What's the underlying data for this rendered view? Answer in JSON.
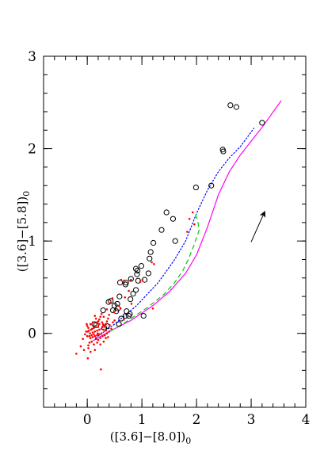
{
  "chart_data": {
    "type": "scatter",
    "title": "",
    "xlabel": {
      "main": "([3.6]−[8.0])",
      "sub": "0"
    },
    "ylabel": {
      "main": "([3.6]−[5.8])",
      "sub": "0"
    },
    "xlim": [
      -0.8,
      4.0
    ],
    "ylim": [
      -0.8,
      3.0
    ],
    "x_ticks": [
      {
        "value": 0,
        "label": "0"
      },
      {
        "value": 1,
        "label": "1"
      },
      {
        "value": 2,
        "label": "2"
      },
      {
        "value": 3,
        "label": "3"
      },
      {
        "value": 4,
        "label": "4"
      }
    ],
    "y_ticks": [
      {
        "value": 0,
        "label": "0"
      },
      {
        "value": 1,
        "label": "1"
      },
      {
        "value": 2,
        "label": "2"
      },
      {
        "value": 3,
        "label": "3"
      }
    ],
    "x_minor_step": 0.2,
    "y_minor_step": 0.2,
    "grid": false,
    "series": [
      {
        "kind": "points",
        "marker": "open-circle",
        "color": "#000000",
        "points": [
          [
            3.2,
            2.28
          ],
          [
            2.62,
            2.47
          ],
          [
            2.73,
            2.45
          ],
          [
            2.48,
            1.99
          ],
          [
            2.49,
            1.97
          ],
          [
            1.99,
            1.58
          ],
          [
            2.27,
            1.6
          ],
          [
            1.45,
            1.31
          ],
          [
            1.57,
            1.24
          ],
          [
            1.61,
            1.0
          ],
          [
            1.36,
            1.12
          ],
          [
            1.21,
            0.98
          ],
          [
            1.16,
            0.88
          ],
          [
            1.14,
            0.81
          ],
          [
            0.99,
            0.73
          ],
          [
            0.89,
            0.7
          ],
          [
            0.92,
            0.68
          ],
          [
            0.91,
            0.64
          ],
          [
            1.12,
            0.65
          ],
          [
            1.05,
            0.58
          ],
          [
            0.93,
            0.57
          ],
          [
            0.8,
            0.59
          ],
          [
            0.7,
            0.53
          ],
          [
            0.71,
            0.55
          ],
          [
            0.89,
            0.47
          ],
          [
            0.6,
            0.55
          ],
          [
            0.79,
            0.37
          ],
          [
            0.84,
            0.43
          ],
          [
            0.59,
            0.4
          ],
          [
            0.55,
            0.32
          ],
          [
            0.56,
            0.27
          ],
          [
            0.43,
            0.35
          ],
          [
            0.39,
            0.34
          ],
          [
            0.5,
            0.3
          ],
          [
            0.47,
            0.25
          ],
          [
            0.53,
            0.24
          ],
          [
            0.29,
            0.25
          ],
          [
            0.72,
            0.24
          ],
          [
            0.76,
            0.19
          ],
          [
            0.7,
            0.19
          ],
          [
            0.62,
            0.16
          ],
          [
            0.78,
            0.21
          ],
          [
            1.03,
            0.19
          ],
          [
            0.58,
            0.1
          ],
          [
            0.36,
            0.08
          ],
          [
            0.31,
            0.06
          ],
          [
            0.16,
            0.09
          ],
          [
            0.13,
            0.1
          ]
        ]
      },
      {
        "kind": "points",
        "marker": "filled-dot",
        "color": "#ff0000",
        "points": [
          [
            1.93,
            1.31
          ],
          [
            1.96,
            1.18
          ],
          [
            1.87,
            1.24
          ],
          [
            1.83,
            1.1
          ],
          [
            1.18,
            0.77
          ],
          [
            1.22,
            0.75
          ],
          [
            1.01,
            0.58
          ],
          [
            0.97,
            0.56
          ],
          [
            0.8,
            0.58
          ],
          [
            0.67,
            0.57
          ],
          [
            0.62,
            0.58
          ],
          [
            0.76,
            0.46
          ],
          [
            0.69,
            0.39
          ],
          [
            0.81,
            0.32
          ],
          [
            0.46,
            0.38
          ],
          [
            0.43,
            0.33
          ],
          [
            0.56,
            0.3
          ],
          [
            0.61,
            0.27
          ],
          [
            0.49,
            0.23
          ],
          [
            0.36,
            0.26
          ],
          [
            1.2,
            0.27
          ],
          [
            0.67,
            0.15
          ],
          [
            0.5,
            0.14
          ],
          [
            0.47,
            0.12
          ],
          [
            0.4,
            0.2
          ],
          [
            0.38,
            0.16
          ],
          [
            0.34,
            0.1
          ],
          [
            0.41,
            0.09
          ],
          [
            0.26,
            0.21
          ],
          [
            0.3,
            0.18
          ],
          [
            0.22,
            0.15
          ],
          [
            0.2,
            0.13
          ],
          [
            0.18,
            0.12
          ],
          [
            0.27,
            0.12
          ],
          [
            0.29,
            0.1
          ],
          [
            0.32,
            0.08
          ],
          [
            0.22,
            0.1
          ],
          [
            0.2,
            0.07
          ],
          [
            0.15,
            0.08
          ],
          [
            0.12,
            0.06
          ],
          [
            0.09,
            0.05
          ],
          [
            0.07,
            0.04
          ],
          [
            0.03,
            0.03
          ],
          [
            0.01,
            0.02
          ],
          [
            0.05,
            0.0
          ],
          [
            0.1,
            0.01
          ],
          [
            0.14,
            0.02
          ],
          [
            0.18,
            0.03
          ],
          [
            0.22,
            0.04
          ],
          [
            0.26,
            0.05
          ],
          [
            0.3,
            0.04
          ],
          [
            0.34,
            0.03
          ],
          [
            0.12,
            -0.01
          ],
          [
            0.08,
            -0.02
          ],
          [
            0.04,
            -0.03
          ],
          [
            0.0,
            -0.03
          ],
          [
            0.06,
            -0.05
          ],
          [
            0.1,
            -0.04
          ],
          [
            0.14,
            -0.03
          ],
          [
            0.18,
            -0.02
          ],
          [
            0.22,
            -0.01
          ],
          [
            0.26,
            0.0
          ],
          [
            0.16,
            -0.06
          ],
          [
            0.2,
            -0.07
          ],
          [
            0.24,
            -0.05
          ],
          [
            0.28,
            -0.03
          ],
          [
            0.32,
            -0.02
          ],
          [
            0.36,
            0.0
          ],
          [
            0.4,
            0.02
          ],
          [
            0.44,
            0.05
          ],
          [
            0.02,
            0.06
          ],
          [
            -0.02,
            0.02
          ],
          [
            -0.04,
            -0.01
          ],
          [
            0.0,
            0.08
          ],
          [
            0.06,
            0.1
          ],
          [
            0.1,
            0.12
          ],
          [
            0.16,
            0.16
          ],
          [
            0.24,
            0.18
          ],
          [
            0.04,
            -0.1
          ],
          [
            0.08,
            -0.09
          ],
          [
            0.12,
            -0.12
          ],
          [
            0.18,
            -0.1
          ],
          [
            0.24,
            -0.12
          ],
          [
            0.3,
            -0.09
          ],
          [
            0.34,
            -0.05
          ],
          [
            0.38,
            -0.04
          ],
          [
            -0.08,
            -0.06
          ],
          [
            -0.12,
            -0.14
          ],
          [
            -0.06,
            -0.18
          ],
          [
            0.02,
            -0.16
          ],
          [
            0.06,
            -0.2
          ],
          [
            0.14,
            -0.18
          ],
          [
            -0.2,
            -0.22
          ],
          [
            0.01,
            -0.27
          ],
          [
            0.25,
            -0.39
          ],
          [
            0.02,
            -0.13
          ],
          [
            0.36,
            0.13
          ],
          [
            0.14,
            0.19
          ],
          [
            -0.01,
            0.1
          ],
          [
            0.28,
            0.07
          ],
          [
            0.19,
            0.0
          ]
        ]
      },
      {
        "kind": "line",
        "style": "solid",
        "color": "#ff00ff",
        "points": [
          [
            0.1,
            -0.08
          ],
          [
            0.4,
            0.02
          ],
          [
            0.8,
            0.14
          ],
          [
            1.2,
            0.3
          ],
          [
            1.5,
            0.45
          ],
          [
            1.8,
            0.65
          ],
          [
            2.0,
            0.85
          ],
          [
            2.2,
            1.15
          ],
          [
            2.4,
            1.5
          ],
          [
            2.6,
            1.75
          ],
          [
            2.8,
            1.93
          ],
          [
            3.0,
            2.08
          ],
          [
            3.2,
            2.23
          ],
          [
            3.55,
            2.52
          ]
        ]
      },
      {
        "kind": "line",
        "style": "dotted",
        "color": "#0000ff",
        "points": [
          [
            0.15,
            -0.05
          ],
          [
            0.5,
            0.1
          ],
          [
            0.9,
            0.3
          ],
          [
            1.3,
            0.55
          ],
          [
            1.6,
            0.8
          ],
          [
            1.8,
            1.0
          ],
          [
            2.0,
            1.3
          ],
          [
            2.2,
            1.55
          ],
          [
            2.4,
            1.75
          ],
          [
            2.6,
            1.9
          ],
          [
            2.8,
            2.02
          ],
          [
            3.05,
            2.22
          ]
        ]
      },
      {
        "kind": "line",
        "style": "dashed",
        "color": "#00cc00",
        "points": [
          [
            0.3,
            -0.02
          ],
          [
            0.7,
            0.12
          ],
          [
            1.1,
            0.28
          ],
          [
            1.4,
            0.42
          ],
          [
            1.6,
            0.55
          ],
          [
            1.75,
            0.68
          ],
          [
            1.85,
            0.8
          ],
          [
            1.95,
            0.95
          ],
          [
            2.05,
            1.12
          ],
          [
            2.02,
            1.22
          ],
          [
            1.97,
            1.32
          ]
        ]
      }
    ],
    "annotations": [
      {
        "kind": "arrow",
        "color": "#000000",
        "from": [
          3.0,
          0.99
        ],
        "to": [
          3.25,
          1.32
        ]
      }
    ]
  }
}
